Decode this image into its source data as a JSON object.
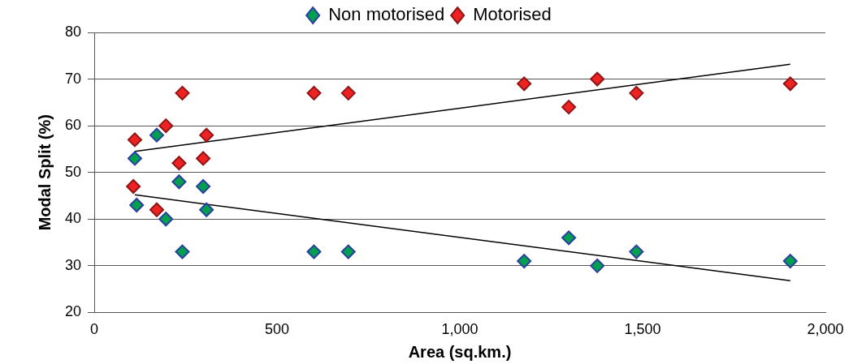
{
  "chart_data": {
    "type": "scatter",
    "xlabel": "Area (sq.km.)",
    "ylabel": "Modal Split (%)",
    "xlim": [
      0,
      2000
    ],
    "xticks": [
      0,
      500,
      {
        "value": 1000,
        "label": "1,000"
      },
      {
        "value": 1500,
        "label": "1,500"
      },
      {
        "value": 2000,
        "label": "2,000"
      }
    ],
    "ylim": [
      20,
      80
    ],
    "yticks": [
      20,
      30,
      40,
      50,
      60,
      70,
      80
    ],
    "grid": "y",
    "legend": "top",
    "marker": "diamond",
    "series": [
      {
        "name": "Non motorised",
        "color": "#00a050",
        "x": [
          111,
          116,
          171,
          196,
          232,
          241,
          298,
          307,
          601,
          695,
          1176,
          1298,
          1376,
          1483,
          1904
        ],
        "values": [
          53,
          43,
          58,
          40,
          48,
          33,
          47,
          42,
          33,
          33,
          31,
          36,
          30,
          33,
          31
        ]
      },
      {
        "name": "Motorised",
        "color": "#ee2222",
        "x": [
          111,
          107,
          196,
          171,
          241,
          232,
          307,
          298,
          601,
          695,
          1176,
          1298,
          1376,
          1483,
          1904
        ],
        "values": [
          57,
          47,
          60,
          42,
          67,
          52,
          58,
          53,
          67,
          67,
          69,
          64,
          70,
          67,
          69
        ]
      },
      {
        "type": "line",
        "color": "#000000",
        "marker": "none",
        "x": [
          111,
          1904
        ],
        "values": [
          54.5,
          73.2
        ]
      },
      {
        "type": "line",
        "color": "#000000",
        "marker": "none",
        "x": [
          111,
          1904
        ],
        "values": [
          45.2,
          26.8
        ]
      }
    ]
  }
}
